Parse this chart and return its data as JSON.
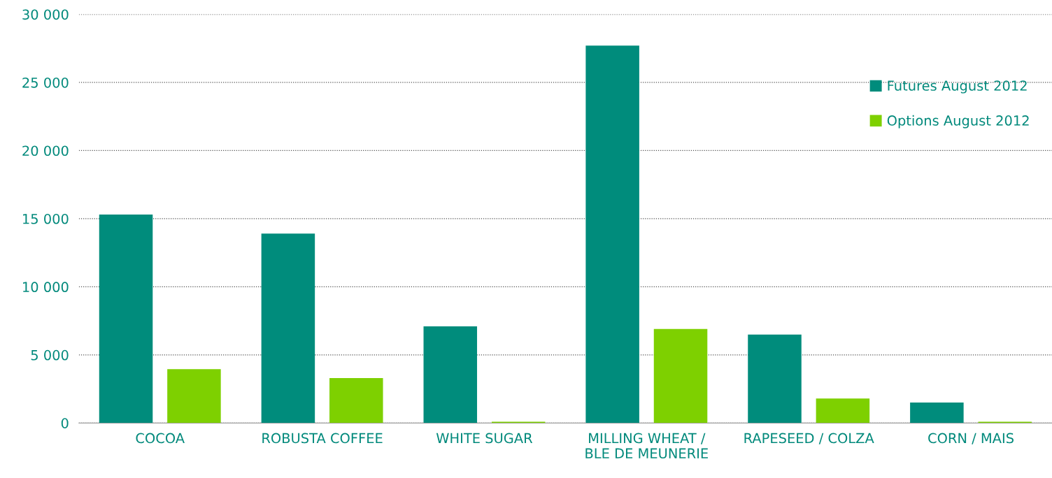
{
  "chart_data": {
    "type": "bar",
    "categories": [
      "COCOA",
      "ROBUSTA COFFEE",
      "WHITE SUGAR",
      "MILLING WHEAT /\nBLE DE MEUNERIE",
      "RAPESEED / COLZA",
      "CORN / MAIS"
    ],
    "series": [
      {
        "name": "Futures August 2012",
        "color": "#008c7c",
        "values": [
          15300,
          13900,
          7100,
          27700,
          6500,
          1500
        ]
      },
      {
        "name": "Options August 2012",
        "color": "#7ed000",
        "values": [
          3950,
          3300,
          100,
          6900,
          1800,
          100
        ]
      }
    ],
    "ylim": [
      0,
      30000
    ],
    "yticks": [
      0,
      {
        "value": 5000,
        "label": "5 000"
      },
      {
        "value": 10000,
        "label": "10 000"
      },
      {
        "value": 15000,
        "label": "15 000"
      },
      {
        "value": 20000,
        "label": "20 000"
      },
      {
        "value": 25000,
        "label": "25 000"
      },
      {
        "value": 30000,
        "label": "30 000"
      }
    ],
    "grid": "y",
    "legend": "right"
  }
}
